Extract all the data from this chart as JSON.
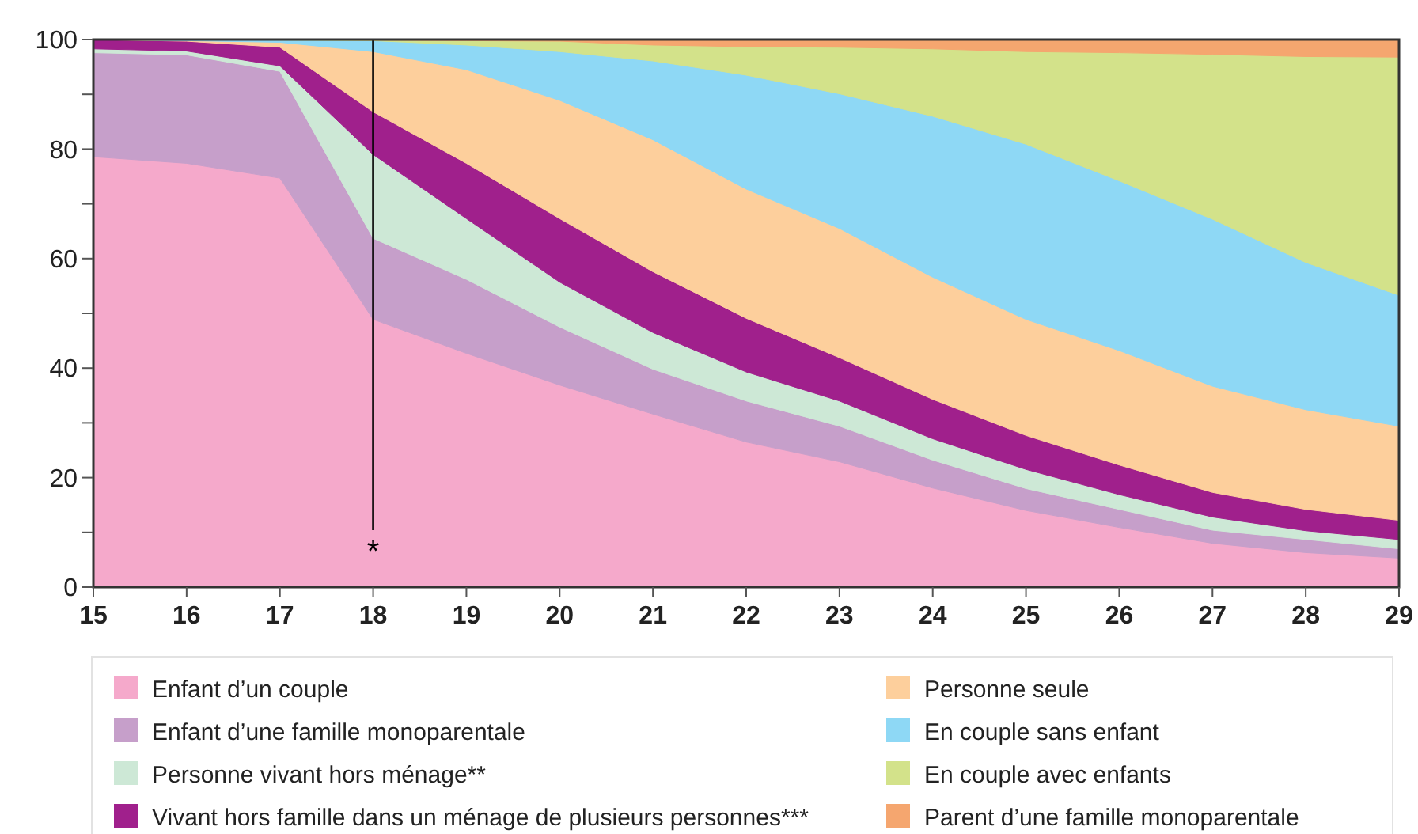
{
  "chart_data": {
    "type": "area",
    "stacked": true,
    "x": [
      15,
      16,
      17,
      18,
      19,
      20,
      21,
      22,
      23,
      24,
      25,
      26,
      27,
      28,
      29
    ],
    "xlim": [
      15,
      29
    ],
    "xticks": [
      15,
      16,
      17,
      18,
      19,
      20,
      21,
      22,
      23,
      24,
      25,
      26,
      27,
      28,
      29
    ],
    "ylim": [
      0,
      100
    ],
    "yticks": [
      0,
      {
        "value": 10,
        "label": null
      },
      20,
      {
        "value": 30,
        "label": null
      },
      40,
      {
        "value": 50,
        "label": null
      },
      60,
      {
        "value": 70,
        "label": null
      },
      80,
      {
        "value": 90,
        "label": null
      },
      100
    ],
    "legend": "bottom",
    "grid": false,
    "ref_lines": [
      {
        "axis": "x",
        "value": 18,
        "label": "*",
        "color": "#000000"
      }
    ],
    "series": [
      {
        "name": "Enfant d’un couple",
        "color": "#f5a9cb",
        "values": [
          78.6,
          77.4,
          74.7,
          48.9,
          42.7,
          36.9,
          31.6,
          26.5,
          22.9,
          18.1,
          14.0,
          10.9,
          8.0,
          6.3,
          5.3
        ]
      },
      {
        "name": "Enfant d’une famille monoparentale",
        "color": "#c69fca",
        "values": [
          19.0,
          19.8,
          19.5,
          14.8,
          13.5,
          10.6,
          8.2,
          7.5,
          6.5,
          5.1,
          4.0,
          3.3,
          2.4,
          2.4,
          1.7
        ]
      },
      {
        "name": "Personne vivant hors ménage**",
        "color": "#cde8d6",
        "values": [
          0.7,
          0.7,
          1.0,
          15.3,
          11.1,
          8.2,
          6.7,
          5.3,
          4.6,
          3.9,
          3.5,
          2.7,
          2.4,
          1.6,
          1.7
        ]
      },
      {
        "name": "Vivant hors famille dans un ménage de plusieurs personnes***",
        "color": "#a0208c",
        "values": [
          1.7,
          1.8,
          3.4,
          7.8,
          10.1,
          11.6,
          11.1,
          9.8,
          7.9,
          7.2,
          6.2,
          5.4,
          4.5,
          3.9,
          3.5
        ]
      },
      {
        "name": "Personne seule",
        "color": "#fdcf9c",
        "values": [
          0,
          0.1,
          0.9,
          11.0,
          17.1,
          21.6,
          24.1,
          23.6,
          23.6,
          22.3,
          21.2,
          20.9,
          19.4,
          18.2,
          17.2
        ]
      },
      {
        "name": "En couple sans enfant",
        "color": "#8ed8f5",
        "values": [
          0,
          0.2,
          0.4,
          2.0,
          4.5,
          8.9,
          14.4,
          20.8,
          24.6,
          29.4,
          32.0,
          31.0,
          30.5,
          26.9,
          23.9
        ]
      },
      {
        "name": "En couple avec enfants",
        "color": "#d3e28a",
        "values": [
          0,
          0,
          0.1,
          0.1,
          0.8,
          1.9,
          2.9,
          5.2,
          8.5,
          12.3,
          16.9,
          23.4,
          30.1,
          37.6,
          43.5
        ]
      },
      {
        "name": "Parent d’une famille monoparentale",
        "color": "#f5a66f",
        "values": [
          0,
          0,
          0,
          0.1,
          0.2,
          0.3,
          1.0,
          1.3,
          1.4,
          1.7,
          2.2,
          2.4,
          2.7,
          3.1,
          3.2
        ]
      }
    ]
  }
}
